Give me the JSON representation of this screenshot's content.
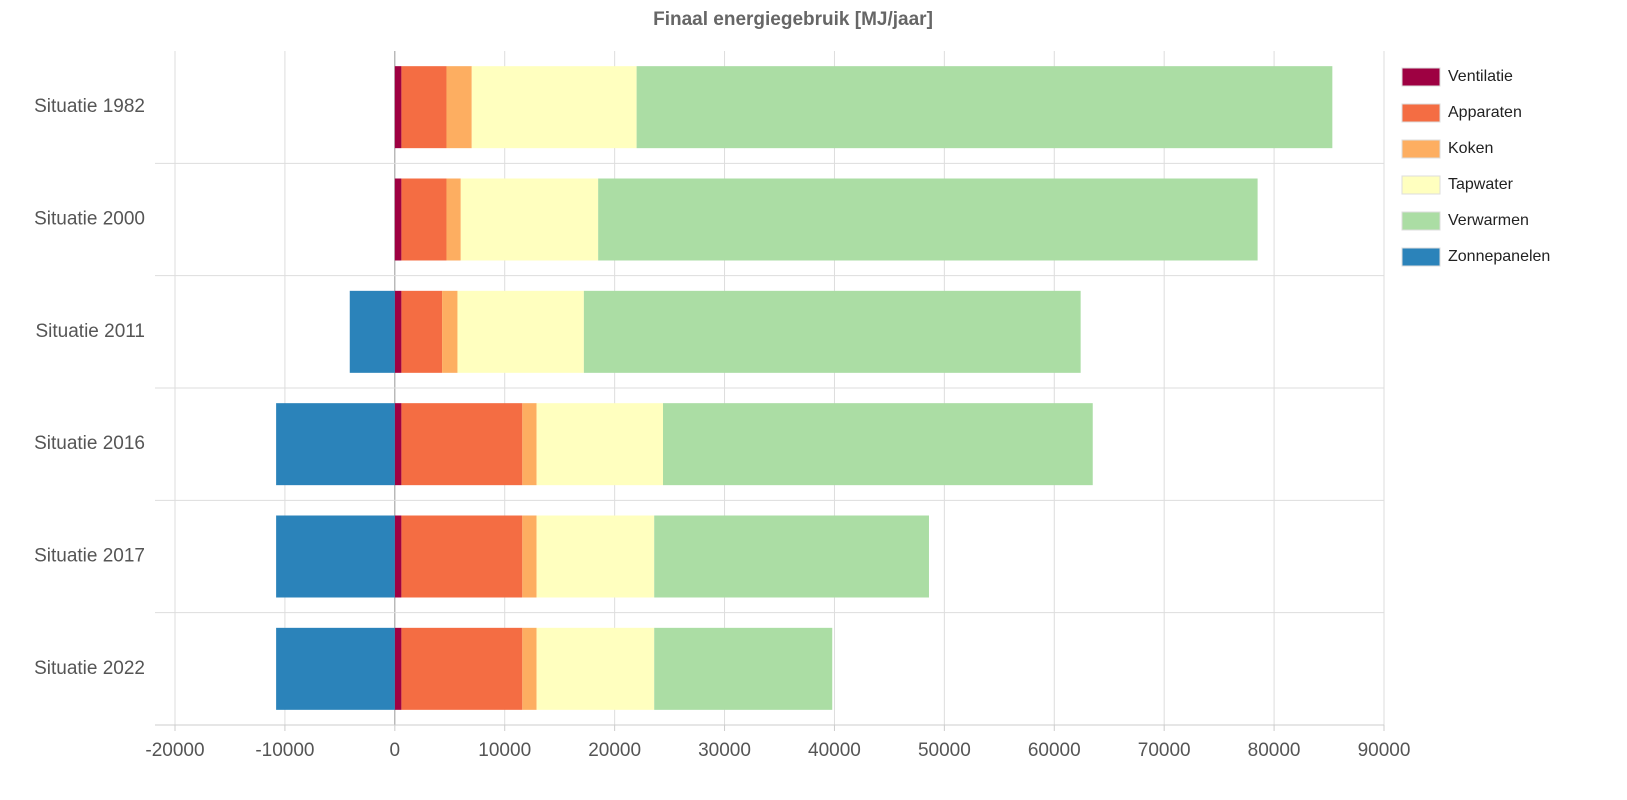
{
  "chart_data": {
    "type": "bar",
    "orientation": "horizontal",
    "stacked": true,
    "title": "Finaal energiegebruik [MJ/jaar]",
    "categories": [
      "Situatie 1982",
      "Situatie 2000",
      "Situatie 2011",
      "Situatie 2016",
      "Situatie 2017",
      "Situatie 2022"
    ],
    "series": [
      {
        "name": "Ventilatie",
        "color": "#9e0142",
        "values": [
          600,
          600,
          600,
          600,
          600,
          600
        ]
      },
      {
        "name": "Apparaten",
        "color": "#f46d43",
        "values": [
          4100,
          4100,
          3700,
          11000,
          11000,
          11000
        ]
      },
      {
        "name": "Koken",
        "color": "#fdae61",
        "values": [
          2300,
          1300,
          1400,
          1300,
          1300,
          1300
        ]
      },
      {
        "name": "Tapwater",
        "color": "#ffffbf",
        "values": [
          15000,
          12500,
          11500,
          11500,
          10700,
          10700
        ]
      },
      {
        "name": "Verwarmen",
        "color": "#abdda4",
        "values": [
          63300,
          60000,
          45200,
          39100,
          25000,
          16200
        ]
      },
      {
        "name": "Zonnepanelen",
        "color": "#2b83ba",
        "values": [
          0,
          0,
          -4100,
          -10800,
          -10800,
          -10800
        ]
      }
    ],
    "xlim": [
      -20000,
      90000
    ],
    "xticks": [
      -20000,
      -10000,
      0,
      10000,
      20000,
      30000,
      40000,
      50000,
      60000,
      70000,
      80000,
      90000
    ],
    "grid": true,
    "legend": "right"
  }
}
